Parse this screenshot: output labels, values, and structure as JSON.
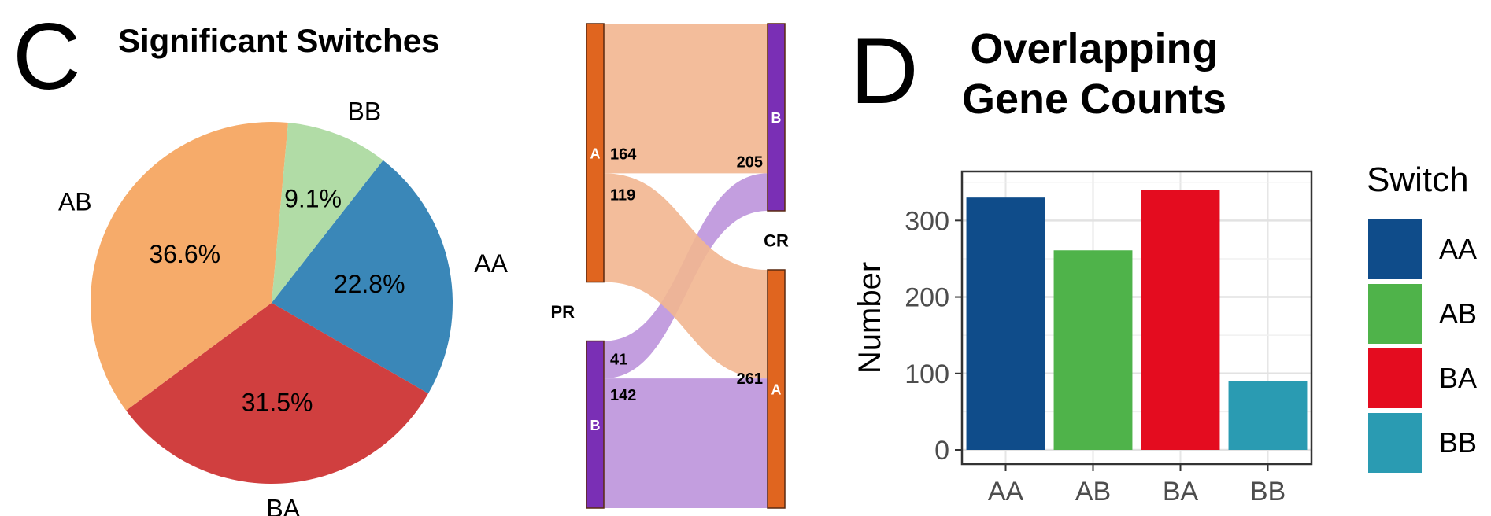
{
  "panels": {
    "c_letter": "C",
    "d_letter": "D"
  },
  "chart_data": [
    {
      "type": "pie",
      "title": "Significant Switches",
      "labels": [
        "AA",
        "BA",
        "AB",
        "BB"
      ],
      "percent_labels": [
        "22.8%",
        "31.5%",
        "36.6%",
        "9.1%"
      ],
      "values": [
        22.8,
        31.5,
        36.6,
        9.1
      ],
      "colors": [
        "#3a87b8",
        "#d03f3f",
        "#f6ab6a",
        "#b1dca6"
      ]
    },
    {
      "type": "sankey",
      "left_group": "PR",
      "right_group": "CR",
      "left_nodes": [
        {
          "id": "A",
          "label": "A",
          "color": "#e0651f"
        },
        {
          "id": "B",
          "label": "B",
          "color": "#7a2fb5"
        }
      ],
      "right_nodes": [
        {
          "id": "B",
          "label": "B",
          "color": "#7a2fb5"
        },
        {
          "id": "A",
          "label": "A",
          "color": "#e0651f"
        }
      ],
      "flows": [
        {
          "from": "A",
          "to": "B",
          "value": 164
        },
        {
          "from": "A",
          "to": "A",
          "value": 119
        },
        {
          "from": "B",
          "to": "B",
          "value": 41
        },
        {
          "from": "B",
          "to": "A",
          "value": 142
        }
      ],
      "node_totals": [
        {
          "node": "CR-B",
          "value": 205
        },
        {
          "node": "CR-A",
          "value": 261
        }
      ]
    },
    {
      "type": "bar",
      "title": "Overlapping Gene Counts",
      "categories": [
        "AA",
        "AB",
        "BA",
        "BB"
      ],
      "values": [
        330,
        261,
        340,
        90
      ],
      "ylabel": "Number",
      "ylim": [
        0,
        360
      ],
      "yticks": [
        0,
        100,
        200,
        300
      ],
      "grid": true,
      "legend_title": "Switch",
      "legend_position": "right",
      "colors": [
        "#0f4c8a",
        "#4fb34a",
        "#e40c1f",
        "#2a9bb2"
      ]
    }
  ]
}
